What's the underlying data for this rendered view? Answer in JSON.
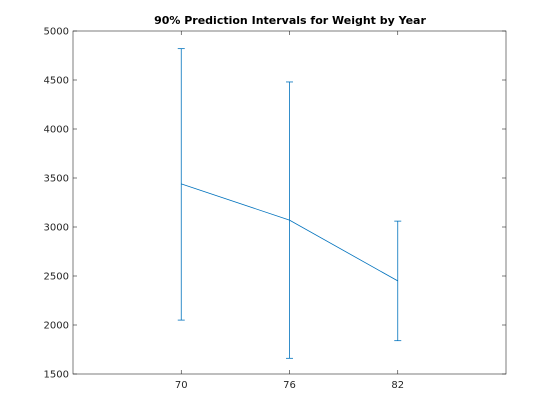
{
  "chart_data": {
    "type": "line",
    "title": "90% Prediction Intervals for Weight by Year",
    "xlabel": "",
    "ylabel": "",
    "categories": [
      "70",
      "76",
      "82"
    ],
    "x": [
      70,
      76,
      82
    ],
    "xlim": [
      64,
      88
    ],
    "ylim": [
      1500,
      5000
    ],
    "yticks": [
      1500,
      2000,
      2500,
      3000,
      3500,
      4000,
      4500,
      5000
    ],
    "series": [
      {
        "values": [
          3440,
          3070,
          2450
        ],
        "lower": [
          2050,
          1660,
          1840
        ],
        "upper": [
          4820,
          4480,
          3060
        ],
        "color": "#0072BD"
      }
    ],
    "grid": false,
    "legend": "none"
  }
}
